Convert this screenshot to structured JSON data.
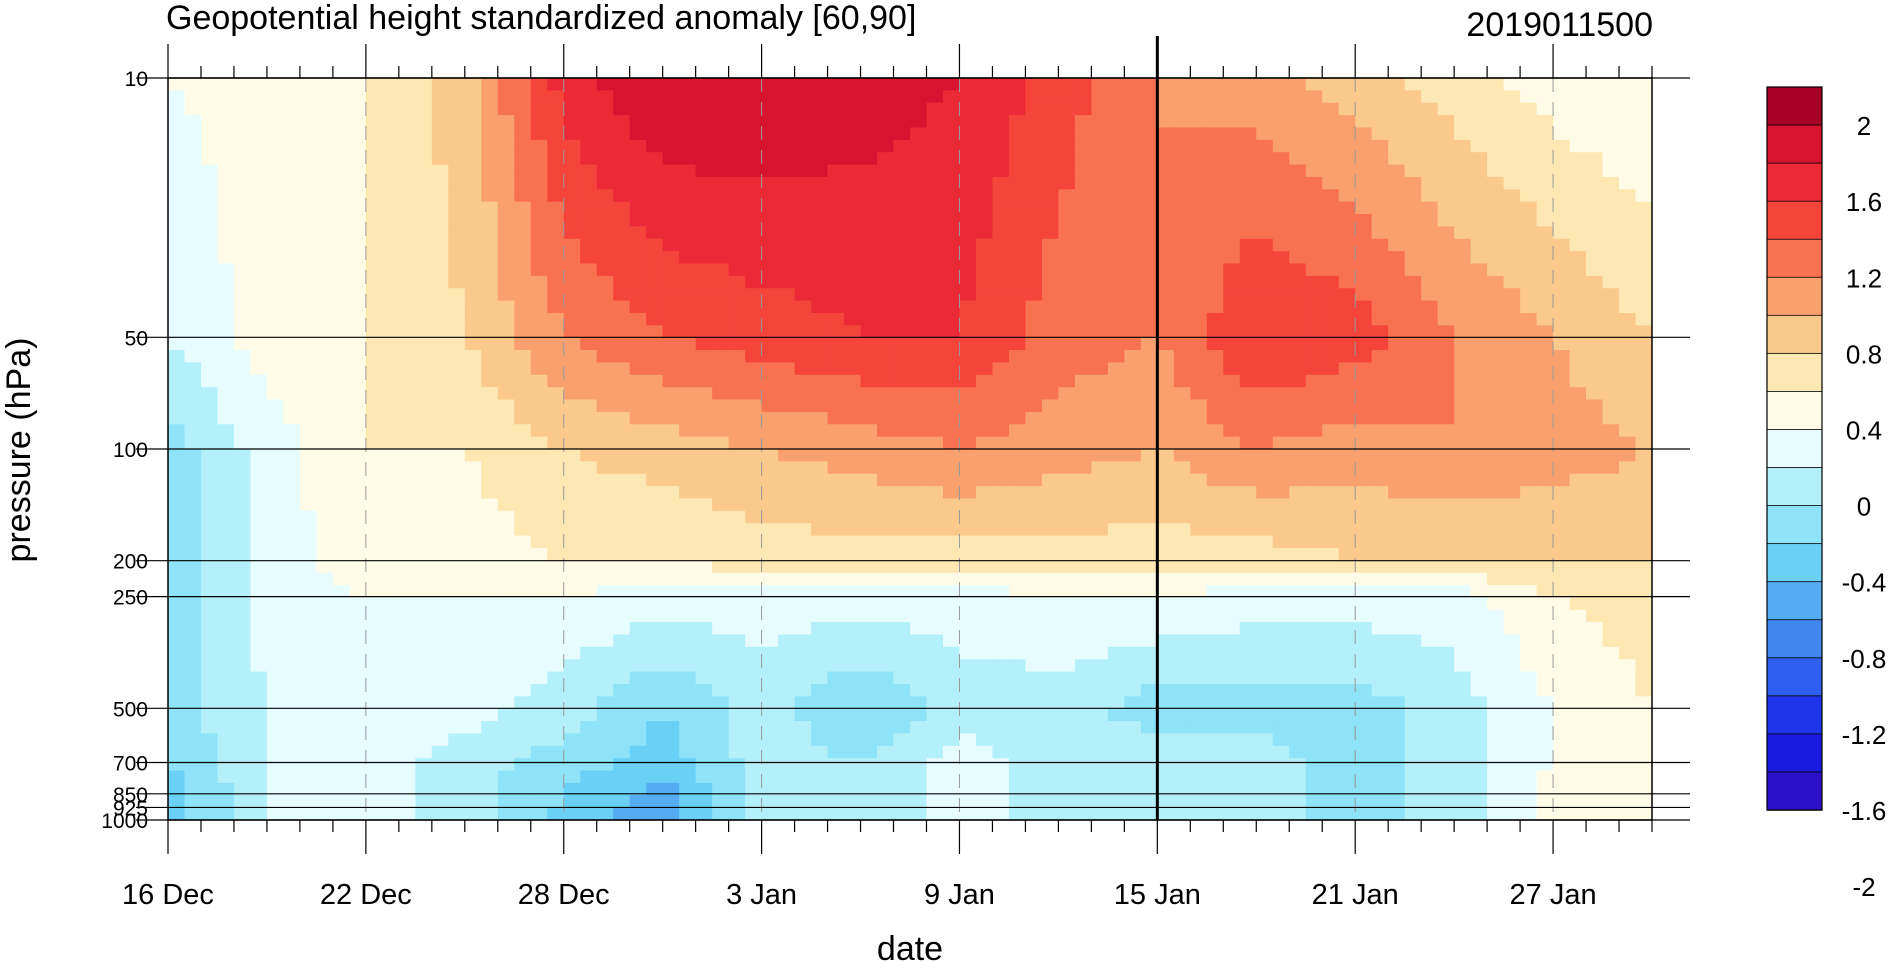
{
  "chart_data": {
    "type": "heatmap",
    "title": "Geopotential height standardized anomaly [60,90]",
    "date_stamp": "2019011500",
    "xlabel": "date",
    "ylabel": "pressure (hPa)",
    "x_ticks": [
      "16 Dec",
      "22 Dec",
      "28 Dec",
      "3 Jan",
      "9 Jan",
      "15 Jan",
      "21 Jan",
      "27 Jan"
    ],
    "x_range_days": [
      0,
      45
    ],
    "y_ticks": [
      "10",
      "50",
      "100",
      "200",
      "250",
      "500",
      "700",
      "850",
      "925",
      "1000"
    ],
    "y_tick_values": [
      10,
      50,
      100,
      200,
      250,
      500,
      700,
      850,
      925,
      1000
    ],
    "y_scale": "log",
    "y_range": [
      10,
      1000
    ],
    "reference_line": "15 Jan",
    "colorbar": {
      "labels": [
        "2",
        "1.6",
        "1.2",
        "0.8",
        "0.4",
        "0",
        "-0.4",
        "-0.8",
        "-1.2",
        "-1.6",
        "-2"
      ],
      "levels": [
        2.2,
        2.0,
        1.8,
        1.6,
        1.4,
        1.2,
        1.0,
        0.8,
        0.6,
        0.4,
        0.2,
        0.0,
        -0.2,
        -0.4,
        -0.6,
        -0.8,
        -1.0,
        -1.2,
        -1.4,
        -1.6,
        -1.8,
        -2.0,
        -2.2
      ],
      "colors": [
        "#a50026",
        "#d7132f",
        "#ec2a37",
        "#f5453b",
        "#f87252",
        "#f9a06e",
        "#fbc98c",
        "#fde8b4",
        "#fffbe6",
        "#e6fcff",
        "#b4f0fa",
        "#8ee3f8",
        "#6ad0f6",
        "#55acf2",
        "#3f86ef",
        "#2e5ff0",
        "#1f35ec",
        "#1a1ae0",
        "#2b10c8"
      ]
    },
    "pressure_levels": [
      10,
      50,
      100,
      200,
      250,
      500,
      700,
      850,
      925,
      1000
    ],
    "days": [
      0,
      3,
      6,
      9,
      12,
      15,
      18,
      21,
      24,
      27,
      30,
      33,
      36,
      39,
      42,
      45
    ],
    "values": [
      [
        0.4,
        0.5,
        0.6,
        0.9,
        1.7,
        2.0,
        2.0,
        1.9,
        1.8,
        1.5,
        1.2,
        1.1,
        0.9,
        0.7,
        0.5,
        0.4
      ],
      [
        0.2,
        0.5,
        0.6,
        0.8,
        1.2,
        1.4,
        1.5,
        1.6,
        1.6,
        1.3,
        1.2,
        1.6,
        1.5,
        1.2,
        1.0,
        0.8
      ],
      [
        -0.1,
        0.3,
        0.6,
        0.6,
        0.8,
        0.9,
        1.0,
        1.1,
        1.2,
        1.1,
        1.0,
        1.2,
        1.1,
        1.2,
        1.1,
        1.0
      ],
      [
        -0.2,
        0.3,
        0.5,
        0.5,
        0.6,
        0.6,
        0.7,
        0.7,
        0.7,
        0.7,
        0.7,
        0.7,
        0.8,
        0.8,
        0.8,
        0.8
      ],
      [
        -0.2,
        0.3,
        0.4,
        0.4,
        0.4,
        0.3,
        0.3,
        0.3,
        0.3,
        0.4,
        0.4,
        0.3,
        0.3,
        0.3,
        0.6,
        0.7
      ],
      [
        -0.1,
        0.2,
        0.4,
        0.3,
        0.1,
        -0.2,
        0.1,
        -0.2,
        0.1,
        0.1,
        -0.1,
        -0.1,
        -0.1,
        0.1,
        0.4,
        0.6
      ],
      [
        -0.2,
        0.2,
        0.3,
        0.1,
        -0.1,
        -0.3,
        0.1,
        0.0,
        0.3,
        0.1,
        0.1,
        0.1,
        -0.1,
        0.1,
        0.4,
        0.5
      ],
      [
        -0.3,
        0.2,
        0.3,
        0.1,
        -0.2,
        -0.5,
        0.1,
        0.0,
        0.3,
        0.1,
        0.1,
        0.1,
        -0.1,
        0.1,
        0.5,
        0.6
      ],
      [
        -0.3,
        0.2,
        0.3,
        0.1,
        -0.2,
        -0.5,
        0.1,
        0.0,
        0.3,
        0.1,
        0.1,
        0.1,
        -0.1,
        0.1,
        0.5,
        0.6
      ],
      [
        -0.3,
        0.2,
        0.3,
        0.1,
        -0.3,
        -0.6,
        0.1,
        0.0,
        0.3,
        0.1,
        0.1,
        0.1,
        -0.1,
        0.1,
        0.5,
        0.6
      ]
    ]
  }
}
